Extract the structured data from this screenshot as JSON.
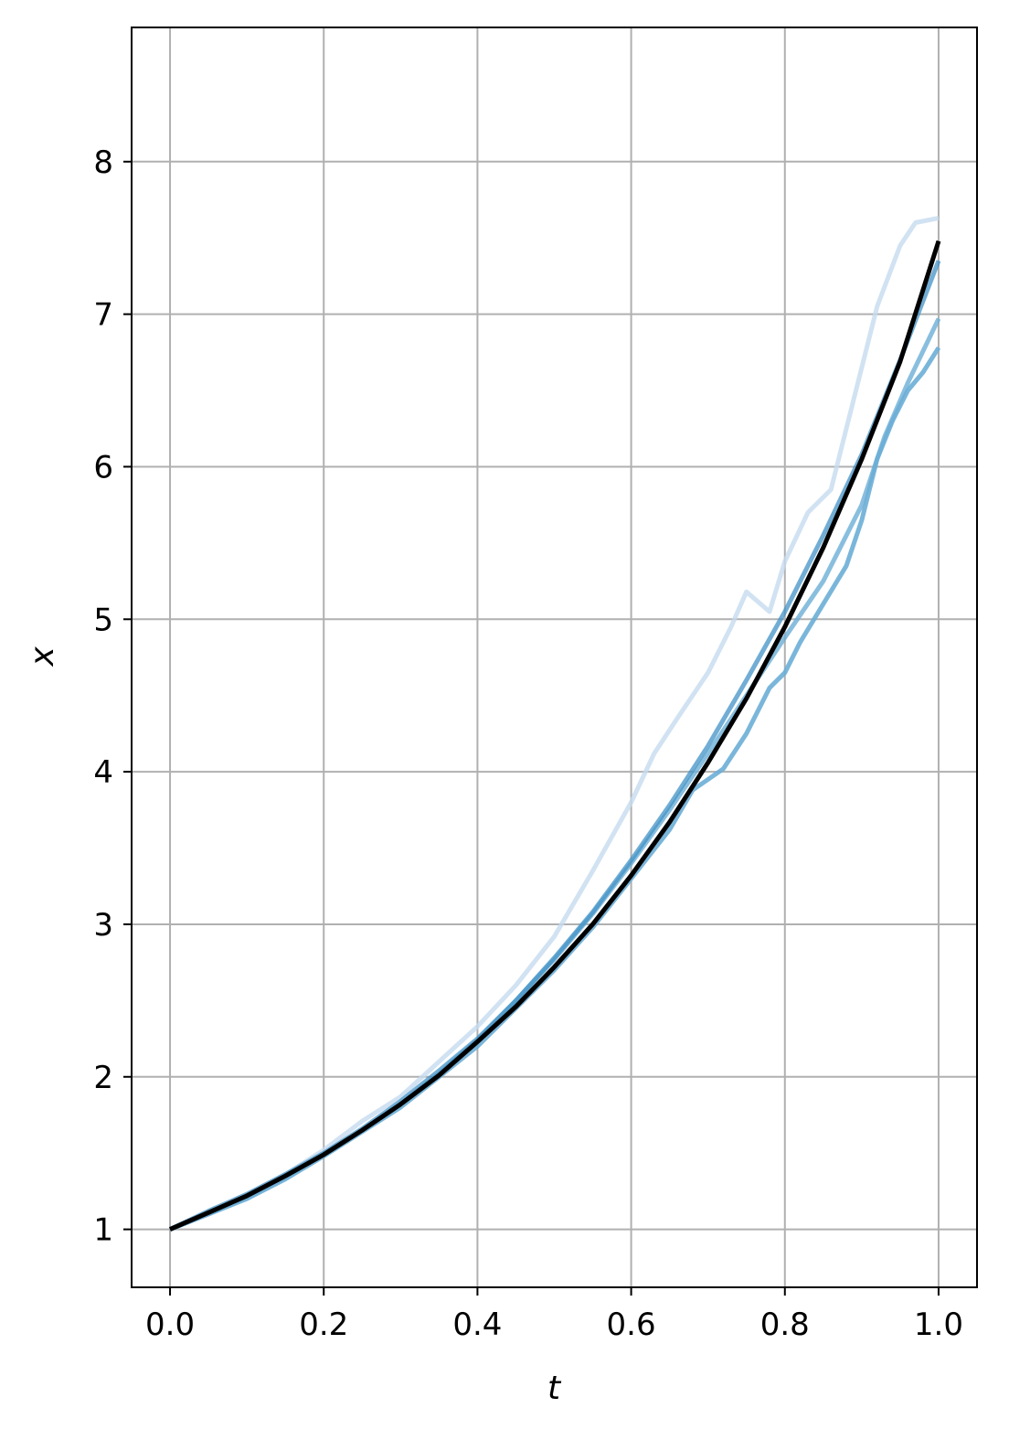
{
  "chart_data": {
    "type": "line",
    "title": "",
    "xlabel": "t",
    "ylabel": "x",
    "xlim": [
      -0.05,
      1.05
    ],
    "ylim": [
      0.62,
      8.88
    ],
    "xticks": [
      0.0,
      0.2,
      0.4,
      0.6,
      0.8,
      1.0
    ],
    "xtick_labels": [
      "0.0",
      "0.2",
      "0.4",
      "0.6",
      "0.8",
      "1.0"
    ],
    "yticks": [
      1,
      2,
      3,
      4,
      5,
      6,
      7,
      8
    ],
    "ytick_labels": [
      "1",
      "2",
      "3",
      "4",
      "5",
      "6",
      "7",
      "8"
    ],
    "grid": true,
    "legend": false,
    "colors": {
      "path_light": "#c6dbef",
      "path_mid": "#6baed6",
      "path_dark": "#4292c6",
      "mean": "#000000",
      "grid": "#b0b0b0"
    },
    "series": [
      {
        "color_key": "path_light",
        "opacity": 0.8,
        "x": [
          0,
          0.05,
          0.1,
          0.15,
          0.2,
          0.25,
          0.3,
          0.35,
          0.4,
          0.45,
          0.5,
          0.55,
          0.6,
          0.63,
          0.66,
          0.7,
          0.73,
          0.75,
          0.78,
          0.8,
          0.83,
          0.86,
          0.88,
          0.9,
          0.92,
          0.95,
          0.97,
          1.0
        ],
        "y": [
          1.0,
          1.11,
          1.22,
          1.36,
          1.52,
          1.71,
          1.87,
          2.1,
          2.33,
          2.6,
          2.92,
          3.35,
          3.8,
          4.12,
          4.35,
          4.65,
          4.95,
          5.18,
          5.05,
          5.38,
          5.7,
          5.85,
          6.25,
          6.65,
          7.05,
          7.45,
          7.6,
          7.63
        ]
      },
      {
        "color_key": "path_mid",
        "opacity": 0.9,
        "x": [
          0,
          0.05,
          0.1,
          0.15,
          0.2,
          0.25,
          0.3,
          0.35,
          0.4,
          0.45,
          0.5,
          0.55,
          0.6,
          0.65,
          0.68,
          0.7,
          0.72,
          0.75,
          0.78,
          0.8,
          0.82,
          0.85,
          0.88,
          0.9,
          0.92,
          0.94,
          0.96,
          0.98,
          1.0
        ],
        "y": [
          1.0,
          1.1,
          1.2,
          1.33,
          1.48,
          1.64,
          1.8,
          2.0,
          2.2,
          2.45,
          2.7,
          2.98,
          3.3,
          3.62,
          3.88,
          3.95,
          4.02,
          4.25,
          4.55,
          4.65,
          4.85,
          5.1,
          5.35,
          5.65,
          6.05,
          6.3,
          6.5,
          6.62,
          6.78
        ]
      },
      {
        "color_key": "path_mid",
        "opacity": 0.8,
        "x": [
          0,
          0.05,
          0.1,
          0.15,
          0.2,
          0.25,
          0.3,
          0.35,
          0.4,
          0.45,
          0.5,
          0.55,
          0.6,
          0.65,
          0.7,
          0.75,
          0.8,
          0.85,
          0.9,
          0.93,
          0.96,
          1.0
        ],
        "y": [
          1.0,
          1.1,
          1.21,
          1.34,
          1.49,
          1.65,
          1.82,
          2.02,
          2.24,
          2.5,
          2.77,
          3.07,
          3.4,
          3.75,
          4.12,
          4.5,
          4.88,
          5.25,
          5.75,
          6.2,
          6.55,
          6.97
        ]
      },
      {
        "color_key": "path_dark",
        "opacity": 0.75,
        "x": [
          0,
          0.05,
          0.1,
          0.15,
          0.2,
          0.25,
          0.3,
          0.35,
          0.4,
          0.45,
          0.5,
          0.55,
          0.6,
          0.65,
          0.7,
          0.75,
          0.8,
          0.85,
          0.9,
          0.95,
          1.0
        ],
        "y": [
          1.0,
          1.12,
          1.23,
          1.36,
          1.5,
          1.66,
          1.84,
          2.04,
          2.25,
          2.5,
          2.78,
          3.08,
          3.42,
          3.78,
          4.17,
          4.6,
          5.05,
          5.55,
          6.08,
          6.7,
          7.35
        ]
      },
      {
        "color_key": "mean",
        "opacity": 1,
        "x": [
          0,
          0.05,
          0.1,
          0.15,
          0.2,
          0.25,
          0.3,
          0.35,
          0.4,
          0.45,
          0.5,
          0.55,
          0.6,
          0.65,
          0.7,
          0.75,
          0.8,
          0.85,
          0.9,
          0.95,
          1.0
        ],
        "y": [
          1.0,
          1.11,
          1.22,
          1.35,
          1.49,
          1.65,
          1.82,
          2.01,
          2.23,
          2.46,
          2.72,
          3.0,
          3.32,
          3.67,
          4.06,
          4.48,
          4.95,
          5.47,
          6.05,
          6.69,
          7.48
        ]
      }
    ]
  }
}
